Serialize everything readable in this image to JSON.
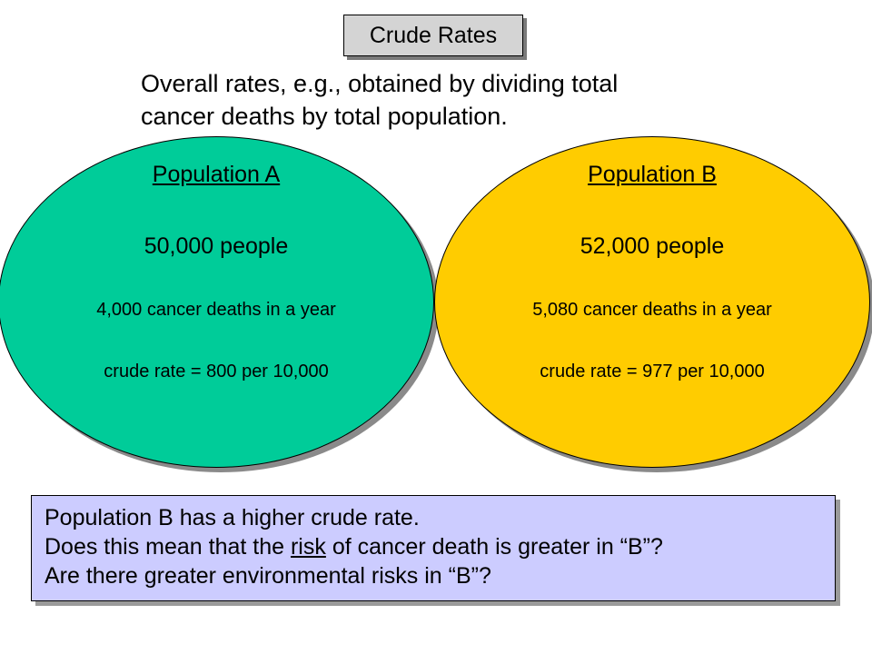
{
  "title": "Crude Rates",
  "subtitle_line1": "Overall rates, e.g., obtained by dividing total",
  "subtitle_line2": "cancer deaths by total population.",
  "populations": [
    {
      "name": "Population A",
      "people": "50,000 people",
      "deaths": "4,000 cancer deaths in a year",
      "rate": "crude rate = 800 per 10,000",
      "color": "#00cc99"
    },
    {
      "name": "Population B",
      "people": "52,000 people",
      "deaths": "5,080 cancer deaths in a year",
      "rate": "crude rate = 977 per 10,000",
      "color": "#ffcc00"
    }
  ],
  "note": {
    "line1": "Population B has a higher crude rate.",
    "line2_pre": "Does this mean that the ",
    "line2_risk": "risk",
    "line2_post": " of cancer death is greater in “B”?",
    "line3": "Are there greater environmental risks in “B”?",
    "background": "#ccccff"
  }
}
